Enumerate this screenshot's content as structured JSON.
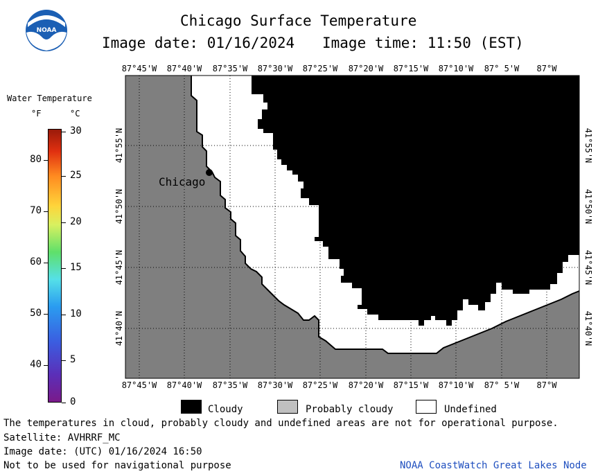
{
  "header": {
    "title": "Chicago Surface Temperature",
    "image_date_label": "Image date: 01/16/2024",
    "image_time_label": "Image time: 11:50 (EST)",
    "logo_text": "NOAA"
  },
  "colorbar": {
    "title": "Water Temperature",
    "unit_f": "°F",
    "unit_c": "°C",
    "f_ticks": [
      "80",
      "70",
      "60",
      "50",
      "40"
    ],
    "c_ticks": [
      "30",
      "25",
      "20",
      "15",
      "10",
      "5",
      "0"
    ]
  },
  "map": {
    "lon_labels": [
      "87°45'W",
      "87°40'W",
      "87°35'W",
      "87°30'W",
      "87°25'W",
      "87°20'W",
      "87°15'W",
      "87°10'W",
      "87° 5'W",
      "87°W"
    ],
    "lat_labels": [
      "41°55'N",
      "41°50'N",
      "41°45'N",
      "41°40'N"
    ],
    "city_label": "Chicago",
    "colors": {
      "land": "#7f7f7f",
      "cloudy": "#000000",
      "undefined": "#ffffff"
    }
  },
  "legend": {
    "cloudy": "Cloudy",
    "probably_cloudy": "Probably cloudy",
    "undefined": "Undefined"
  },
  "footer": {
    "disclaimer": "The temperatures in cloud, probably cloudy and undefined areas are not for operational purpose.",
    "satellite": "Satellite: AVHRRF_MC",
    "utc_date": "Image date: (UTC) 01/16/2024  16:50",
    "nav_warning": "Not to be used for navigational purpose",
    "credit": "NOAA CoastWatch Great Lakes Node"
  }
}
